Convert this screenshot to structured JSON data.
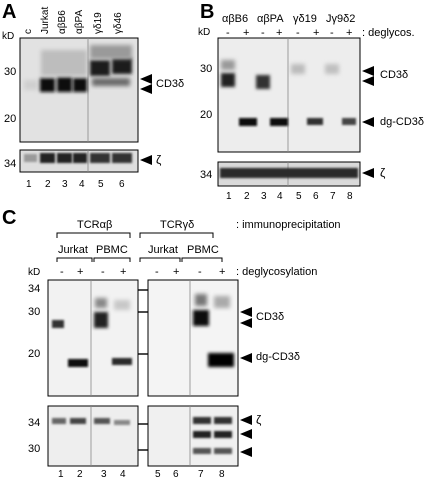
{
  "panel_a": {
    "letter": "A",
    "kd_label": "kD",
    "lane_labels": [
      "c",
      "Jurkat",
      "αβB6",
      "αβPA",
      "γδ19",
      "γδ46"
    ],
    "mw_markers": [
      "30",
      "20"
    ],
    "lower_mw": "34",
    "band_label": "CD3δ",
    "zeta_label": "ζ",
    "lane_numbers": [
      "1",
      "2",
      "3",
      "4",
      "5",
      "6"
    ]
  },
  "panel_b": {
    "letter": "B",
    "kd_label": "kD",
    "groups": [
      "αβB6",
      "αβPA",
      "γδ19",
      "Jγ9δ2"
    ],
    "treatment_signs": [
      "-",
      "+",
      "-",
      "+",
      "-",
      "+",
      "-",
      "+"
    ],
    "treatment_label": ": deglycos.",
    "mw_markers": [
      "30",
      "20"
    ],
    "lower_mw": "34",
    "band_labels": [
      "CD3δ",
      "dg-CD3δ"
    ],
    "zeta_label": "ζ",
    "lane_numbers": [
      "1",
      "2",
      "3",
      "4",
      "5",
      "6",
      "7",
      "8"
    ]
  },
  "panel_c": {
    "letter": "C",
    "ip_groups": [
      "TCRαβ",
      "TCRγδ"
    ],
    "ip_label": ": immunoprecipitation",
    "cell_groups": [
      "Jurkat",
      "PBMC",
      "Jurkat",
      "PBMC"
    ],
    "treatment_signs": [
      "-",
      "+",
      "-",
      "+",
      "-",
      "+",
      "-",
      "+"
    ],
    "treatment_label": ": deglycosylation",
    "kd_label": "kD",
    "mw_markers": [
      "34",
      "30",
      "20"
    ],
    "lower_mw": [
      "34",
      "30"
    ],
    "band_labels": [
      "CD3δ",
      "dg-CD3δ"
    ],
    "zeta_label": "ζ",
    "lane_numbers": [
      "1",
      "2",
      "3",
      "4",
      "5",
      "6",
      "7",
      "8"
    ]
  }
}
